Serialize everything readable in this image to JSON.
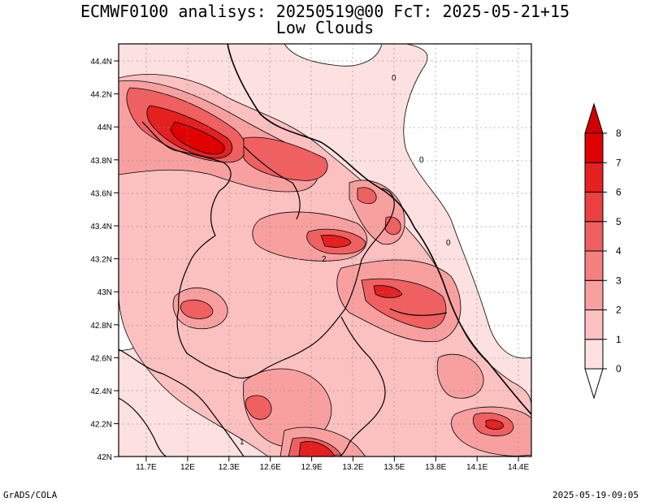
{
  "title": {
    "line1": "ECMWF0100 analisys: 20250519@00 FcT: 2025-05-21+15",
    "line2": "Low Clouds"
  },
  "axes": {
    "lat_labels": [
      "44.4N",
      "44.2N",
      "44N",
      "43.8N",
      "43.6N",
      "43.4N",
      "43.2N",
      "43N",
      "42.8N",
      "42.6N",
      "42.4N",
      "42.2N",
      "42N"
    ],
    "lon_labels": [
      "11.7E",
      "12E",
      "12.3E",
      "12.6E",
      "12.9E",
      "13.2E",
      "13.5E",
      "13.8E",
      "14.1E",
      "14.4E"
    ]
  },
  "colorbar": {
    "levels": [
      "0",
      "1",
      "2",
      "3",
      "4",
      "5",
      "6",
      "7",
      "8"
    ],
    "colors": [
      "#ffffff",
      "#fde0e0",
      "#fbc0c0",
      "#f8a0a0",
      "#f58080",
      "#f06060",
      "#eb4040",
      "#e52020",
      "#e00000",
      "#d00000"
    ]
  },
  "contour_labels": [
    "0",
    "0",
    "0",
    "1",
    "2"
  ],
  "footer": {
    "credit": "GrADS/COLA",
    "timestamp": "2025-05-19-09:05"
  }
}
